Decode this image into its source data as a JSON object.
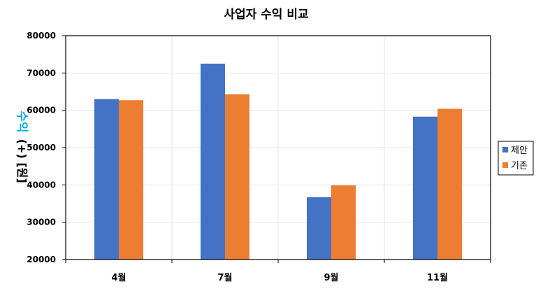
{
  "chart_data": {
    "type": "bar",
    "title": "사업자 수익 비교",
    "ylabel_main": "수익",
    "ylabel_sub": "(+) [원]",
    "ylabel_color": "#00B0F0",
    "categories": [
      "4월",
      "7월",
      "9월",
      "11월"
    ],
    "series": [
      {
        "name": "제안",
        "color": "#4472C4",
        "values": [
          63000,
          72500,
          36700,
          58300
        ]
      },
      {
        "name": "기존",
        "color": "#ED7D31",
        "values": [
          62700,
          64300,
          39900,
          60400
        ]
      }
    ],
    "ylim": [
      20000,
      80000
    ],
    "yticks": [
      20000,
      30000,
      40000,
      50000,
      60000,
      70000,
      80000
    ],
    "grid": true,
    "legend_position": "right"
  }
}
